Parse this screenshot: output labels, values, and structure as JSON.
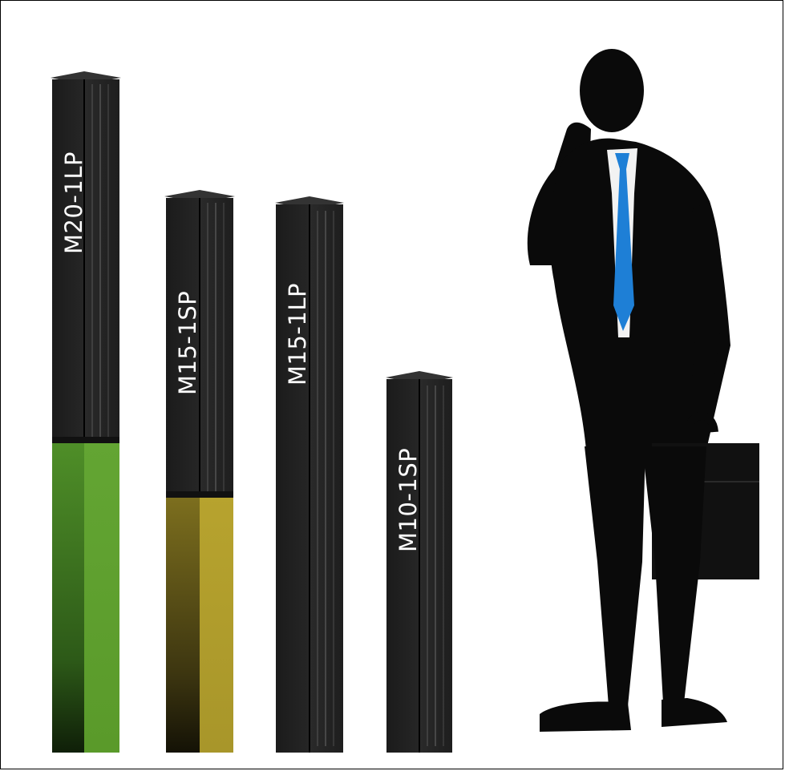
{
  "figure": {
    "columns": [
      {
        "id": "m20-1lp",
        "label": "M20-1LP",
        "accent_color": "#5a9a2a"
      },
      {
        "id": "m15-1sp",
        "label": "M15-1SP",
        "accent_color": "#a8962a"
      },
      {
        "id": "m15-1lp",
        "label": "M15-1LP",
        "accent_color": null
      },
      {
        "id": "m10-1sp",
        "label": "M10-1SP",
        "accent_color": null
      }
    ],
    "silhouette": {
      "tie_color": "#1e7fd6"
    }
  }
}
